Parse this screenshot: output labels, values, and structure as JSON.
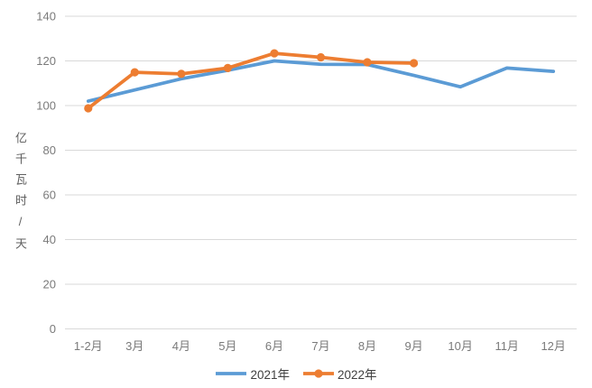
{
  "chart_data": {
    "type": "line",
    "title": "",
    "xlabel": "",
    "ylabel": "亿千瓦时/天",
    "categories": [
      "1-2月",
      "3月",
      "4月",
      "5月",
      "6月",
      "7月",
      "8月",
      "9月",
      "10月",
      "11月",
      "12月"
    ],
    "series": [
      {
        "name": "2021年",
        "color": "#5B9BD5",
        "marker": "none",
        "values": [
          102,
          107,
          112,
          115.8,
          120,
          118.5,
          118.4,
          113.5,
          108.4,
          116.8,
          115.3
        ]
      },
      {
        "name": "2022年",
        "color": "#ED7D31",
        "marker": "circle",
        "values": [
          98.8,
          114.9,
          114.2,
          116.8,
          123.4,
          121.6,
          119.4,
          119
        ]
      }
    ],
    "ylim": [
      0,
      140
    ],
    "yticks": [
      0,
      20,
      40,
      60,
      80,
      100,
      120,
      140
    ],
    "grid": "horizontal-only",
    "legend_position": "bottom-center",
    "colors": {
      "background": "#FFFFFF",
      "gridline": "#D9D9D9",
      "tick_label": "#7A7A7A",
      "axis_title": "#5F5F5F",
      "legend_text": "#404040"
    }
  }
}
